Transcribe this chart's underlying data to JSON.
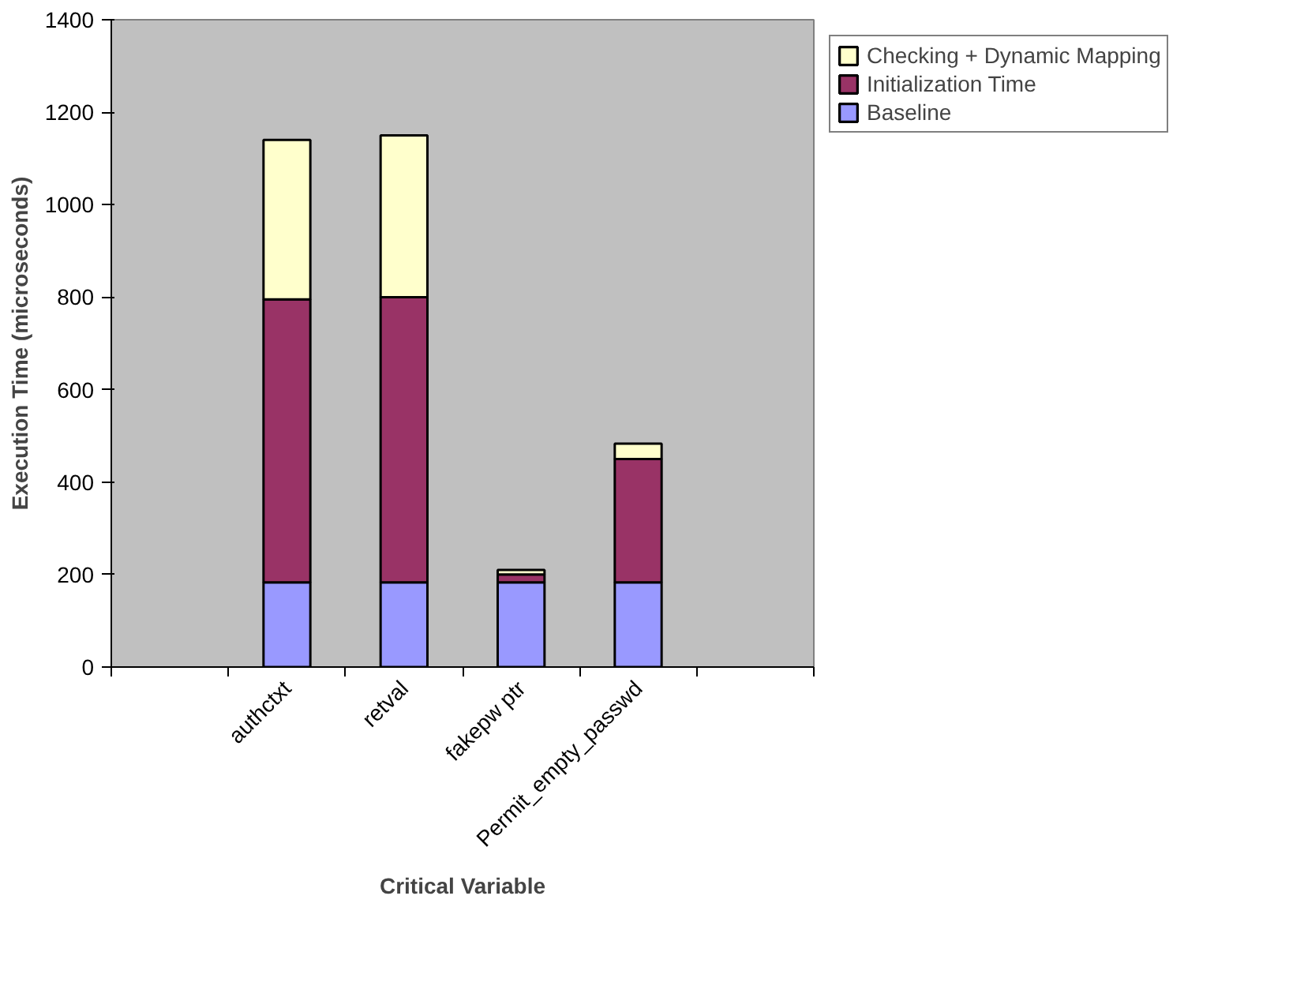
{
  "chart_data": {
    "type": "bar",
    "stacked": true,
    "xlabel": "Critical Variable",
    "ylabel": "Execution Time (microseconds)",
    "categories": [
      null,
      "authctxt",
      "retval",
      "fakepw ptr",
      "Permit_empty_passwd",
      null
    ],
    "series": [
      {
        "name": "Baseline",
        "color": "#9999ff",
        "values": [
          null,
          183,
          183,
          183,
          183,
          null
        ]
      },
      {
        "name": "Initialization Time",
        "color": "#993366",
        "values": [
          null,
          612,
          617,
          17,
          267,
          null
        ]
      },
      {
        "name": "Checking + Dynamic Mapping",
        "color": "#ffffcc",
        "values": [
          null,
          345,
          350,
          10,
          33,
          null
        ]
      }
    ],
    "ylim": [
      0,
      1400
    ],
    "yticks": [
      0,
      200,
      400,
      600,
      800,
      1000,
      1200,
      1400
    ],
    "grid": false,
    "legend": "top right"
  }
}
